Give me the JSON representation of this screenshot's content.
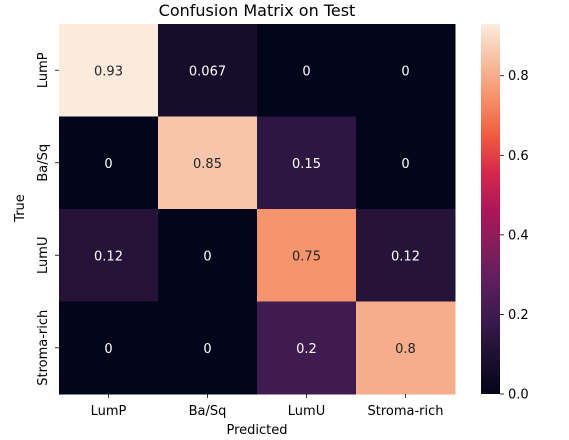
{
  "chart_data": {
    "type": "heatmap",
    "title": "Confusion Matrix on Test",
    "xlabel": "Predicted",
    "ylabel": "True",
    "x_categories": [
      "LumP",
      "Ba/Sq",
      "LumU",
      "Stroma-rich"
    ],
    "y_categories": [
      "LumP",
      "Ba/Sq",
      "LumU",
      "Stroma-rich"
    ],
    "values": [
      [
        0.93,
        0.067,
        0,
        0
      ],
      [
        0,
        0.85,
        0.15,
        0
      ],
      [
        0.12,
        0,
        0.75,
        0.12
      ],
      [
        0,
        0,
        0.2,
        0.8
      ]
    ],
    "cell_labels": [
      [
        "0.93",
        "0.067",
        "0",
        "0"
      ],
      [
        "0",
        "0.85",
        "0.15",
        "0"
      ],
      [
        "0.12",
        "0",
        "0.75",
        "0.12"
      ],
      [
        "0",
        "0",
        "0.2",
        "0.8"
      ]
    ],
    "colorbar": {
      "colormap": "rocket",
      "range": [
        0,
        0.93
      ],
      "ticks": [
        "0.0",
        "0.2",
        "0.4",
        "0.6",
        "0.8"
      ]
    },
    "grid": false,
    "legend": "none"
  }
}
